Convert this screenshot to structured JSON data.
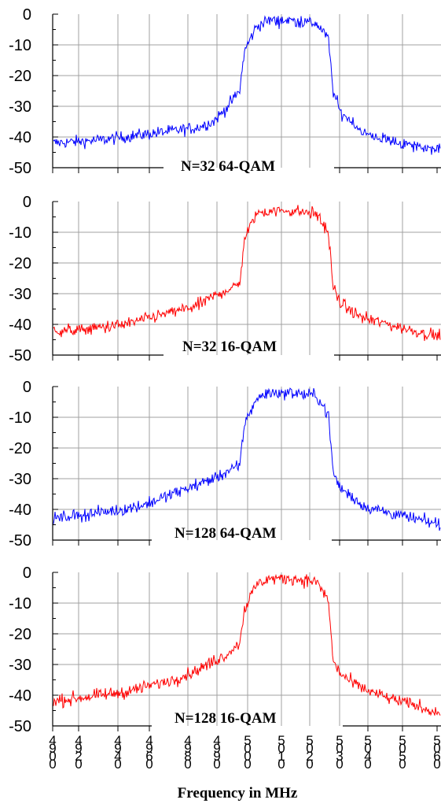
{
  "xlabel": "Frequency in MHz",
  "x_ticks": [
    "4900",
    "4920",
    "4940",
    "4960",
    "4980",
    "4990",
    "5000",
    "5010",
    "5020",
    "5030",
    "5040",
    "5050",
    "5060"
  ],
  "chart_data": [
    {
      "type": "line",
      "label": "N=32 64-QAM",
      "color": "#0000ff",
      "ylim": [
        -50,
        0
      ],
      "y_ticks": [
        "0",
        "-10",
        "-20",
        "-30",
        "-40",
        "-50"
      ],
      "xlim": [
        4900,
        5062
      ],
      "series": [
        {
          "x": [
            4900,
            4910,
            4920,
            4930,
            4940,
            4950,
            4960,
            4967,
            4972,
            4975,
            4978,
            4980,
            4985,
            4990,
            5000,
            5010,
            5015,
            5017,
            5020,
            5025,
            5030,
            5040,
            5050,
            5062
          ],
          "y": [
            -42,
            -41.5,
            -41,
            -40,
            -39,
            -38,
            -37,
            -35,
            -31,
            -28,
            -25,
            -12,
            -4,
            -2,
            -2,
            -3,
            -8,
            -25,
            -32,
            -35,
            -39,
            -41,
            -43,
            -44
          ]
        }
      ]
    },
    {
      "type": "line",
      "label": "N=32 16-QAM",
      "color": "#ff0000",
      "ylim": [
        -50,
        0
      ],
      "y_ticks": [
        "0",
        "-10",
        "-20",
        "-30",
        "-40",
        "-50"
      ],
      "xlim": [
        4900,
        5062
      ],
      "series": [
        {
          "x": [
            4900,
            4910,
            4920,
            4930,
            4940,
            4950,
            4960,
            4967,
            4972,
            4975,
            4978,
            4980,
            4985,
            4990,
            5000,
            5010,
            5015,
            5017,
            5020,
            5025,
            5030,
            5040,
            5050,
            5062
          ],
          "y": [
            -42,
            -42,
            -41,
            -40,
            -38,
            -36,
            -34,
            -31,
            -29,
            -28,
            -27,
            -12,
            -4,
            -3,
            -3,
            -4,
            -10,
            -28,
            -33,
            -36,
            -38,
            -40,
            -42,
            -44
          ]
        }
      ]
    },
    {
      "type": "line",
      "label": "N=128 64-QAM",
      "color": "#0000ff",
      "ylim": [
        -50,
        0
      ],
      "y_ticks": [
        "0",
        "-10",
        "-20",
        "-30",
        "-40",
        "-50"
      ],
      "xlim": [
        4900,
        5062
      ],
      "series": [
        {
          "x": [
            4900,
            4910,
            4920,
            4930,
            4940,
            4950,
            4960,
            4967,
            4972,
            4975,
            4978,
            4980,
            4985,
            4990,
            5000,
            5010,
            5015,
            5017,
            5020,
            5025,
            5030,
            5040,
            5050,
            5062
          ],
          "y": [
            -43,
            -42,
            -41,
            -40,
            -38,
            -35,
            -32,
            -30,
            -28,
            -27,
            -26,
            -12,
            -4,
            -2,
            -2,
            -3,
            -9,
            -28,
            -33,
            -36,
            -39,
            -41,
            -43,
            -45
          ]
        }
      ]
    },
    {
      "type": "line",
      "label": "N=128 16-QAM",
      "color": "#ff0000",
      "ylim": [
        -50,
        0
      ],
      "y_ticks": [
        "0",
        "-10",
        "-20",
        "-30",
        "-40",
        "-50"
      ],
      "xlim": [
        4900,
        5062
      ],
      "series": [
        {
          "x": [
            4900,
            4910,
            4920,
            4930,
            4940,
            4950,
            4960,
            4967,
            4972,
            4975,
            4978,
            4980,
            4985,
            4990,
            5000,
            5010,
            5015,
            5017,
            5020,
            5025,
            5030,
            5040,
            5050,
            5062
          ],
          "y": [
            -42,
            -41,
            -40,
            -39,
            -37,
            -35,
            -32,
            -29,
            -27,
            -25,
            -23,
            -12,
            -4,
            -2,
            -2,
            -3,
            -9,
            -29,
            -33,
            -36,
            -38,
            -41,
            -43,
            -46
          ]
        }
      ]
    }
  ]
}
